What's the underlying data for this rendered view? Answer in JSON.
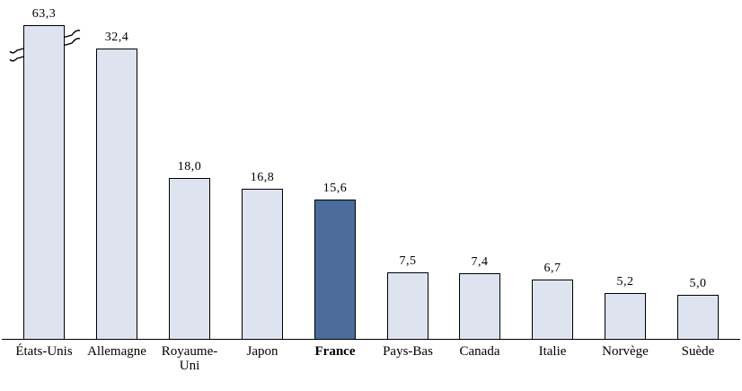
{
  "chart_data": {
    "type": "bar",
    "title": "",
    "xlabel": "",
    "ylabel": "",
    "grid": false,
    "legend": false,
    "decimal_separator": ",",
    "categories": [
      "États-Unis",
      "Allemagne",
      "Royaume-Uni",
      "Japon",
      "France",
      "Pays-Bas",
      "Canada",
      "Italie",
      "Norvège",
      "Suède"
    ],
    "values": [
      63.3,
      32.4,
      18.0,
      16.8,
      15.6,
      7.5,
      7.4,
      6.7,
      5.2,
      5.0
    ],
    "value_labels": [
      "63,3",
      "32,4",
      "18,0",
      "16,8",
      "15,6",
      "7,5",
      "7,4",
      "6,7",
      "5,2",
      "5,0"
    ],
    "highlight_category": "France",
    "highlight_index": 4,
    "axis_break": {
      "category": "États-Unis",
      "true_value": 63.3,
      "displayed_value": 35
    },
    "colors": {
      "bar_fill": "#dde4ef",
      "highlight_fill": "#4b6c9c",
      "bar_border": "#000000",
      "axis": "#000000",
      "background": "#ffffff",
      "text": "#000000"
    }
  }
}
